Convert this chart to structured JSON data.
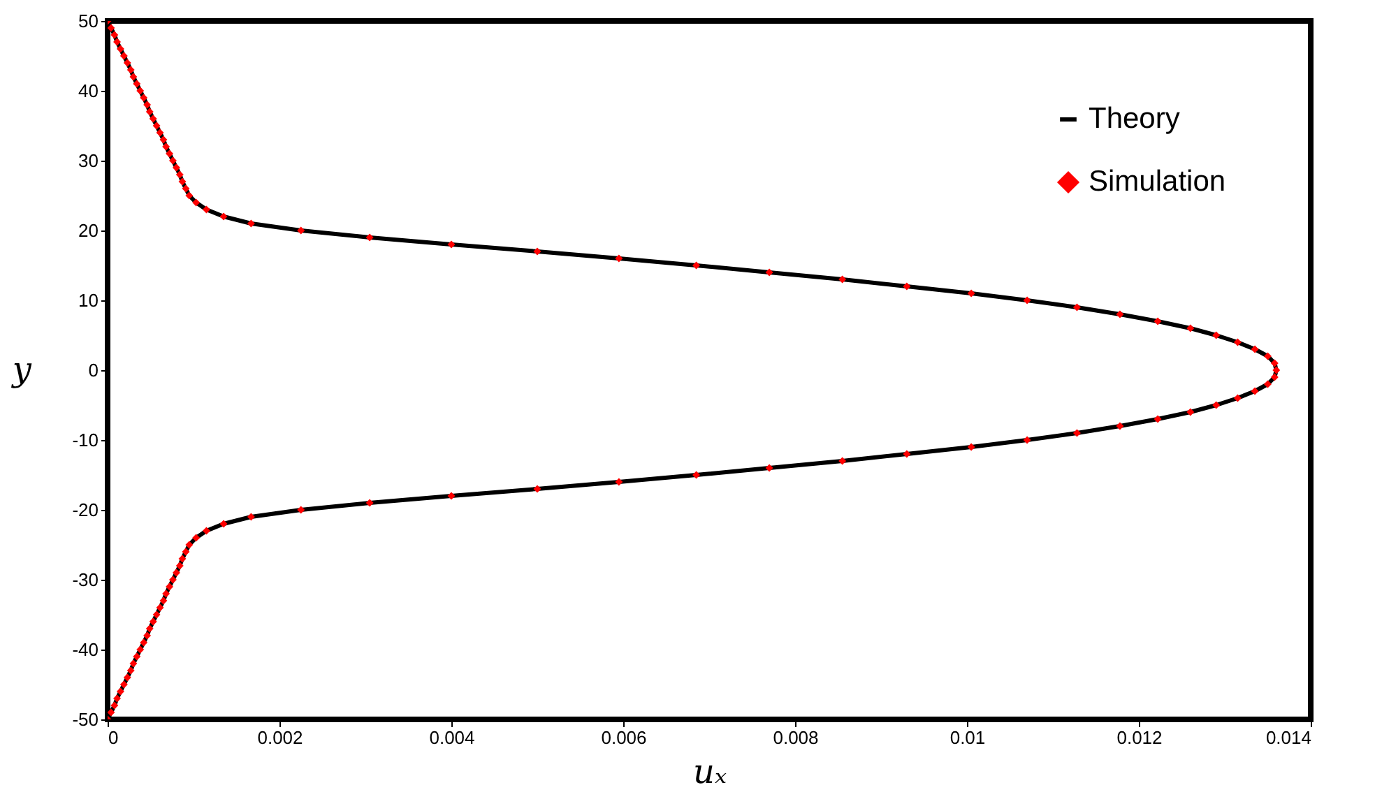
{
  "chart_data": {
    "type": "line",
    "xlabel": "uₓ",
    "ylabel": "y",
    "xlim": [
      0,
      0.014
    ],
    "ylim": [
      -50,
      50
    ],
    "xticks": [
      0,
      0.002,
      0.004,
      0.006,
      0.008,
      0.01,
      0.012,
      0.014
    ],
    "yticks": [
      -50,
      -40,
      -30,
      -20,
      -10,
      0,
      10,
      20,
      30,
      40,
      50
    ],
    "legend": "top right",
    "series": [
      {
        "name": "Theory",
        "color": "#000000",
        "marker": "none",
        "line_style": "solid",
        "x": [
          0,
          4e-05,
          8e-05,
          0.00011,
          0.00015,
          0.00019,
          0.00023,
          0.00027,
          0.0003,
          0.00034,
          0.00038,
          0.00042,
          0.00046,
          0.00049,
          0.00053,
          0.00057,
          0.00061,
          0.00065,
          0.00068,
          0.00072,
          0.00076,
          0.0008,
          0.00084,
          0.00087,
          0.00091,
          0.00095,
          0.00103,
          0.00115,
          0.00135,
          0.00167,
          0.00225,
          0.00305,
          0.004,
          0.005,
          0.00595,
          0.00685,
          0.0077,
          0.00855,
          0.0093,
          0.01005,
          0.0107,
          0.01128,
          0.01178,
          0.01222,
          0.0126,
          0.0129,
          0.01315,
          0.01335,
          0.0135,
          0.01358,
          0.0136,
          0.01358,
          0.0135,
          0.01335,
          0.01315,
          0.0129,
          0.0126,
          0.01222,
          0.01178,
          0.01128,
          0.0107,
          0.01005,
          0.0093,
          0.00855,
          0.0077,
          0.00685,
          0.00595,
          0.005,
          0.004,
          0.00305,
          0.00225,
          0.00167,
          0.00135,
          0.00115,
          0.00103,
          0.00095,
          0.00091,
          0.00087,
          0.00084,
          0.0008,
          0.00076,
          0.00072,
          0.00068,
          0.00065,
          0.00061,
          0.00057,
          0.00053,
          0.00049,
          0.00046,
          0.00042,
          0.00038,
          0.00034,
          0.0003,
          0.00027,
          0.00023,
          0.00019,
          0.00015,
          0.00011,
          8e-05,
          4e-05,
          0
        ],
        "values": [
          -50,
          -49,
          -48,
          -47,
          -46,
          -45,
          -44,
          -43,
          -42,
          -41,
          -40,
          -39,
          -38,
          -37,
          -36,
          -35,
          -34,
          -33,
          -32,
          -31,
          -30,
          -29,
          -28,
          -27,
          -26,
          -25,
          -24,
          -23,
          -22,
          -21,
          -20,
          -19,
          -18,
          -17,
          -16,
          -15,
          -14,
          -13,
          -12,
          -11,
          -10,
          -9,
          -8,
          -7,
          -6,
          -5,
          -4,
          -3,
          -2,
          -1,
          0,
          1,
          2,
          3,
          4,
          5,
          6,
          7,
          8,
          9,
          10,
          11,
          12,
          13,
          14,
          15,
          16,
          17,
          18,
          19,
          20,
          21,
          22,
          23,
          24,
          25,
          26,
          27,
          28,
          29,
          30,
          31,
          32,
          33,
          34,
          35,
          36,
          37,
          38,
          39,
          40,
          41,
          42,
          43,
          44,
          45,
          46,
          47,
          48,
          49,
          50
        ]
      },
      {
        "name": "Simulation",
        "type": "scatter",
        "color": "#ff0000",
        "marker": "diamond",
        "x": [
          0,
          4e-05,
          8e-05,
          0.00011,
          0.00015,
          0.00019,
          0.00023,
          0.00027,
          0.0003,
          0.00034,
          0.00038,
          0.00042,
          0.00046,
          0.00049,
          0.00053,
          0.00057,
          0.00061,
          0.00065,
          0.00068,
          0.00072,
          0.00076,
          0.0008,
          0.00084,
          0.00087,
          0.00091,
          0.00095,
          0.00103,
          0.00115,
          0.00135,
          0.00167,
          0.00225,
          0.00305,
          0.004,
          0.005,
          0.00595,
          0.00685,
          0.0077,
          0.00855,
          0.0093,
          0.01005,
          0.0107,
          0.01128,
          0.01178,
          0.01222,
          0.0126,
          0.0129,
          0.01315,
          0.01335,
          0.0135,
          0.01358,
          0.0136,
          0.01358,
          0.0135,
          0.01335,
          0.01315,
          0.0129,
          0.0126,
          0.01222,
          0.01178,
          0.01128,
          0.0107,
          0.01005,
          0.0093,
          0.00855,
          0.0077,
          0.00685,
          0.00595,
          0.005,
          0.004,
          0.00305,
          0.00225,
          0.00167,
          0.00135,
          0.00115,
          0.00103,
          0.00095,
          0.00091,
          0.00087,
          0.00084,
          0.0008,
          0.00076,
          0.00072,
          0.00068,
          0.00065,
          0.00061,
          0.00057,
          0.00053,
          0.00049,
          0.00046,
          0.00042,
          0.00038,
          0.00034,
          0.0003,
          0.00027,
          0.00023,
          0.00019,
          0.00015,
          0.00011,
          8e-05,
          4e-05,
          0
        ],
        "values": [
          -50,
          -49,
          -48,
          -47,
          -46,
          -45,
          -44,
          -43,
          -42,
          -41,
          -40,
          -39,
          -38,
          -37,
          -36,
          -35,
          -34,
          -33,
          -32,
          -31,
          -30,
          -29,
          -28,
          -27,
          -26,
          -25,
          -24,
          -23,
          -22,
          -21,
          -20,
          -19,
          -18,
          -17,
          -16,
          -15,
          -14,
          -13,
          -12,
          -11,
          -10,
          -9,
          -8,
          -7,
          -6,
          -5,
          -4,
          -3,
          -2,
          -1,
          0,
          1,
          2,
          3,
          4,
          5,
          6,
          7,
          8,
          9,
          10,
          11,
          12,
          13,
          14,
          15,
          16,
          17,
          18,
          19,
          20,
          21,
          22,
          23,
          24,
          25,
          26,
          27,
          28,
          29,
          30,
          31,
          32,
          33,
          34,
          35,
          36,
          37,
          38,
          39,
          40,
          41,
          42,
          43,
          44,
          45,
          46,
          47,
          48,
          49,
          50
        ]
      }
    ]
  }
}
